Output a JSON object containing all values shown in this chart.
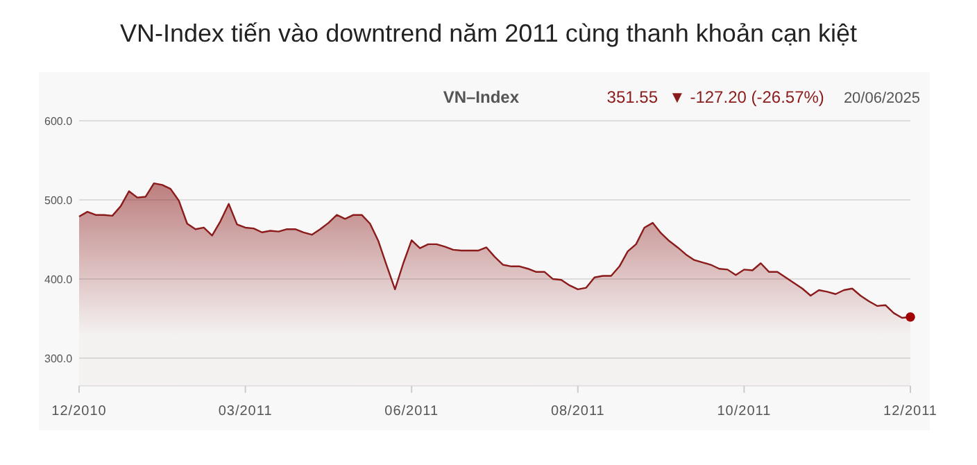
{
  "chart_data": {
    "type": "area",
    "title": "VN-Index tiến vào downtrend năm 2011 cùng thanh khoản cạn kiệt",
    "subtitle": "VN–Index",
    "annotations": [
      "351.55",
      "▼ -127.20 (-26.57%)",
      "20/06/2025"
    ],
    "categories": [
      "12/2010",
      null,
      null,
      null,
      null,
      null,
      null,
      null,
      null,
      null,
      null,
      null,
      null,
      null,
      null,
      null,
      null,
      null,
      null,
      null,
      "03/2011",
      null,
      null,
      null,
      null,
      null,
      null,
      null,
      null,
      null,
      null,
      null,
      null,
      null,
      null,
      null,
      null,
      null,
      null,
      null,
      "06/2011",
      null,
      null,
      null,
      null,
      null,
      null,
      null,
      null,
      null,
      null,
      null,
      null,
      null,
      null,
      null,
      null,
      null,
      null,
      null,
      "08/2011",
      null,
      null,
      null,
      null,
      null,
      null,
      null,
      null,
      null,
      null,
      null,
      null,
      null,
      null,
      null,
      null,
      null,
      null,
      null,
      "10/2011",
      null,
      null,
      null,
      null,
      null,
      null,
      null,
      null,
      null,
      null,
      null,
      null,
      null,
      null,
      null,
      null,
      null,
      null,
      null,
      "12/2011"
    ],
    "ylim": [
      265,
      600
    ],
    "yticks": [
      {
        "value": 300,
        "label": "300.0"
      },
      {
        "value": 400,
        "label": "400.0"
      },
      {
        "value": 500,
        "label": "500.0"
      },
      {
        "value": 600,
        "label": "600.0"
      }
    ],
    "grid": "y",
    "marker": "none",
    "line_style": "solid",
    "series": [
      {
        "color": "#8b1a1a",
        "values": [
          479,
          485,
          481,
          481,
          480,
          492,
          511,
          503,
          504,
          521,
          519,
          514,
          499,
          470,
          463,
          465,
          455,
          473,
          495,
          469,
          465,
          464,
          459,
          461,
          460,
          463,
          463,
          459,
          456,
          463,
          471,
          481,
          476,
          481,
          481,
          470,
          448,
          417,
          387,
          420,
          449,
          439,
          444,
          444,
          441,
          437,
          436,
          436,
          436,
          440,
          428,
          418,
          416,
          416,
          413,
          409,
          409,
          400,
          399,
          392,
          387,
          389,
          402,
          404,
          404,
          416,
          435,
          444,
          465,
          471,
          458,
          448,
          440,
          431,
          424,
          421,
          418,
          413,
          412,
          405,
          412,
          411,
          420,
          409,
          409,
          402,
          395,
          388,
          379,
          386,
          384,
          381,
          386,
          388,
          379,
          372,
          366,
          367,
          357,
          351,
          352
        ]
      },
      {
        "type": "scatter",
        "marker": "circle",
        "color": "#a00000",
        "x": [
          "12/2011"
        ],
        "values": [
          352
        ]
      }
    ]
  }
}
